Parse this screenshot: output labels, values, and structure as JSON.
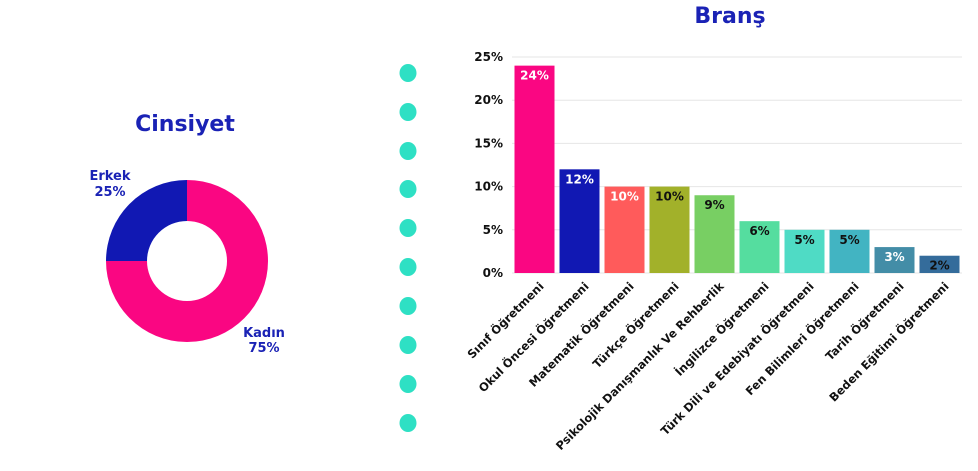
{
  "colors": {
    "title": "#1a22b5",
    "dots": "#2ee0c4",
    "grid": "#e6e6e6",
    "axis_text": "#111111"
  },
  "chart_data": [
    {
      "type": "pie",
      "title": "Cinsiyet",
      "donut": true,
      "slices": [
        {
          "label": "Kadın",
          "value": 75,
          "value_label": "75%",
          "color": "#fa0682"
        },
        {
          "label": "Erkek",
          "value": 25,
          "value_label": "25%",
          "color": "#1118b3"
        }
      ]
    },
    {
      "type": "bar",
      "title": "Branş",
      "categories": [
        "Sınıf Öğretmeni",
        "Okul Öncesi Öğretmeni",
        "Matematik Öğretmeni",
        "Türkçe Öğretmeni",
        "Psikolojik Danışmanlık Ve Rehberlik",
        "İngilizce Öğretmeni",
        "Türk Dili ve Edebiyatı Öğretmeni",
        "Fen Bilimleri Öğretmeni",
        "Tarih Öğretmeni",
        "Beden Eğitimi Öğretmeni"
      ],
      "values": [
        24,
        12,
        10,
        10,
        9,
        6,
        5,
        5,
        3,
        2
      ],
      "value_labels": [
        "24%",
        "12%",
        "10%",
        "10%",
        "9%",
        "6%",
        "5%",
        "5%",
        "3%",
        "2%"
      ],
      "bar_colors": [
        "#fa0682",
        "#1118b3",
        "#ff5b5b",
        "#a2b12a",
        "#78cf63",
        "#55dd9f",
        "#4fdbc5",
        "#42b4c2",
        "#438da7",
        "#346c9b"
      ],
      "label_colors": [
        "#ffffff",
        "#ffffff",
        "#ffffff",
        "#111111",
        "#111111",
        "#111111",
        "#111111",
        "#111111",
        "#ffffff",
        "#111111"
      ],
      "ylim": [
        0,
        25
      ],
      "yticks": [
        0,
        5,
        10,
        15,
        20,
        25
      ],
      "ytick_labels": [
        "0%",
        "5%",
        "10%",
        "15%",
        "20%",
        "25%"
      ],
      "grid": true
    }
  ]
}
